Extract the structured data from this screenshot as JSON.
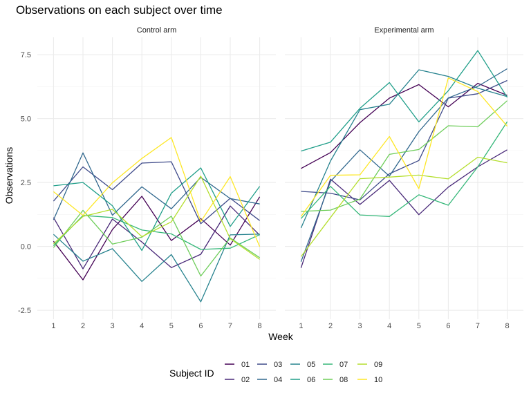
{
  "chart_data": {
    "type": "line",
    "title": "Observations on each subject over time",
    "xlabel": "Week",
    "ylabel": "Observations",
    "x": [
      1,
      2,
      3,
      4,
      5,
      6,
      7,
      8
    ],
    "ylim": [
      -2.5,
      8.1
    ],
    "yticks": [
      -2.5,
      0.0,
      2.5,
      5.0,
      7.5
    ],
    "ytick_labels": [
      "-2.5",
      "0.0",
      "2.5",
      "5.0",
      "7.5"
    ],
    "xticks": [
      1,
      2,
      3,
      4,
      5,
      6,
      7,
      8
    ],
    "xtick_labels": [
      "1",
      "2",
      "3",
      "4",
      "5",
      "6",
      "7",
      "8"
    ],
    "grid": true,
    "legend": {
      "title": "Subject ID",
      "position": "bottom",
      "entries": [
        {
          "id": "01",
          "color": "#440154"
        },
        {
          "id": "02",
          "color": "#482878"
        },
        {
          "id": "03",
          "color": "#3E4A89"
        },
        {
          "id": "04",
          "color": "#31688E"
        },
        {
          "id": "05",
          "color": "#26828E"
        },
        {
          "id": "06",
          "color": "#1F9E89"
        },
        {
          "id": "07",
          "color": "#35B779"
        },
        {
          "id": "08",
          "color": "#6DCD59"
        },
        {
          "id": "09",
          "color": "#B4DE2C"
        },
        {
          "id": "10",
          "color": "#FDE725"
        }
      ]
    },
    "panels": [
      {
        "label": "Control arm",
        "series": [
          {
            "id": "01",
            "values": [
              0.2,
              -1.31,
              0.66,
              1.96,
              0.23,
              1.09,
              0.05,
              1.94
            ]
          },
          {
            "id": "02",
            "values": [
              1.13,
              -0.88,
              1.07,
              0.17,
              -0.83,
              -0.31,
              1.58,
              0.44
            ]
          },
          {
            "id": "03",
            "values": [
              1.77,
              3.11,
              2.22,
              3.26,
              3.31,
              0.89,
              1.88,
              1.01
            ]
          },
          {
            "id": "04",
            "values": [
              1.04,
              3.66,
              1.22,
              2.33,
              1.47,
              2.7,
              1.87,
              1.66
            ]
          },
          {
            "id": "05",
            "values": [
              0.47,
              -0.58,
              -0.09,
              -1.37,
              -0.32,
              -2.17,
              0.45,
              0.48
            ]
          },
          {
            "id": "06",
            "values": [
              2.37,
              2.5,
              1.59,
              -0.16,
              2.08,
              3.07,
              0.78,
              2.35
            ]
          },
          {
            "id": "07",
            "values": [
              0.03,
              1.21,
              1.13,
              0.64,
              0.49,
              -0.12,
              -0.07,
              0.46
            ]
          },
          {
            "id": "08",
            "values": [
              -0.05,
              1.41,
              0.09,
              0.36,
              1.18,
              -1.16,
              0.33,
              -0.44
            ]
          },
          {
            "id": "09",
            "values": [
              0.1,
              1.17,
              1.45,
              0.38,
              0.96,
              2.75,
              0.3,
              -0.51
            ]
          },
          {
            "id": "10",
            "values": [
              2.14,
              1.21,
              2.49,
              3.44,
              4.26,
              0.97,
              2.73,
              -0.01
            ]
          }
        ]
      },
      {
        "label": "Experimental arm",
        "series": [
          {
            "id": "01",
            "values": [
              3.05,
              3.67,
              4.84,
              5.8,
              6.33,
              5.46,
              6.38,
              5.91
            ]
          },
          {
            "id": "02",
            "values": [
              -0.84,
              2.63,
              1.64,
              2.58,
              1.24,
              2.32,
              3.11,
              3.78
            ]
          },
          {
            "id": "03",
            "values": [
              2.15,
              2.08,
              1.82,
              2.84,
              3.36,
              5.8,
              5.97,
              6.49
            ]
          },
          {
            "id": "04",
            "values": [
              -0.6,
              2.54,
              3.78,
              2.75,
              4.49,
              5.81,
              6.26,
              6.95
            ]
          },
          {
            "id": "05",
            "values": [
              0.72,
              3.34,
              5.35,
              5.56,
              6.91,
              6.65,
              6.19,
              5.86
            ]
          },
          {
            "id": "06",
            "values": [
              3.73,
              4.08,
              5.4,
              6.41,
              4.87,
              6.09,
              7.66,
              5.83
            ]
          },
          {
            "id": "07",
            "values": [
              1.09,
              2.35,
              1.23,
              1.17,
              2.02,
              1.61,
              3.11,
              4.88
            ]
          },
          {
            "id": "08",
            "values": [
              1.37,
              1.42,
              1.85,
              3.6,
              3.79,
              4.72,
              4.68,
              5.7
            ]
          },
          {
            "id": "09",
            "values": [
              -0.4,
              1.13,
              2.65,
              2.71,
              2.79,
              2.64,
              3.49,
              3.27
            ]
          },
          {
            "id": "10",
            "values": [
              1.17,
              2.78,
              2.8,
              4.3,
              2.26,
              6.59,
              6.06,
              4.7
            ]
          }
        ]
      }
    ]
  }
}
